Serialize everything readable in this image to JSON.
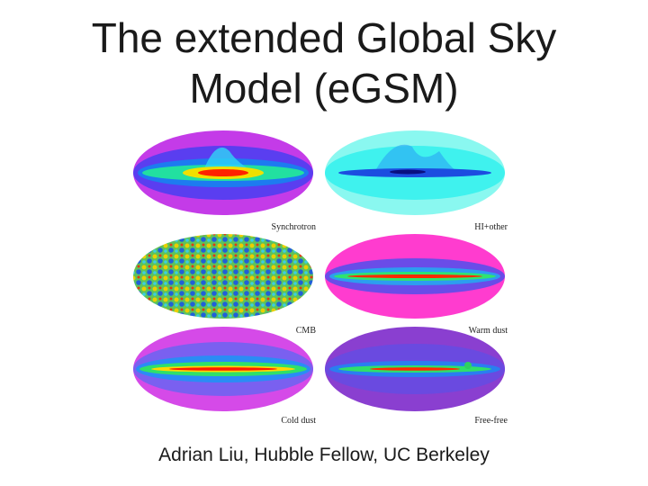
{
  "slide": {
    "title": "The extended Global Sky\nModel (eGSM)",
    "footer": "Adrian Liu, Hubble Fellow, UC Berkeley"
  },
  "maps": [
    {
      "label": "Synchrotron",
      "style": "synchrotron"
    },
    {
      "label": "HI+other",
      "style": "hi"
    },
    {
      "label": "CMB",
      "style": "cmb"
    },
    {
      "label": "Warm dust",
      "style": "warmdust"
    },
    {
      "label": "Cold dust",
      "style": "colddust"
    },
    {
      "label": "Free-free",
      "style": "freefree"
    }
  ],
  "colors": {
    "jet_low": "#1e1ec8",
    "jet_high": "#e00000",
    "background_magenta": "#ff33cc",
    "cyan": "#33f5f0"
  }
}
